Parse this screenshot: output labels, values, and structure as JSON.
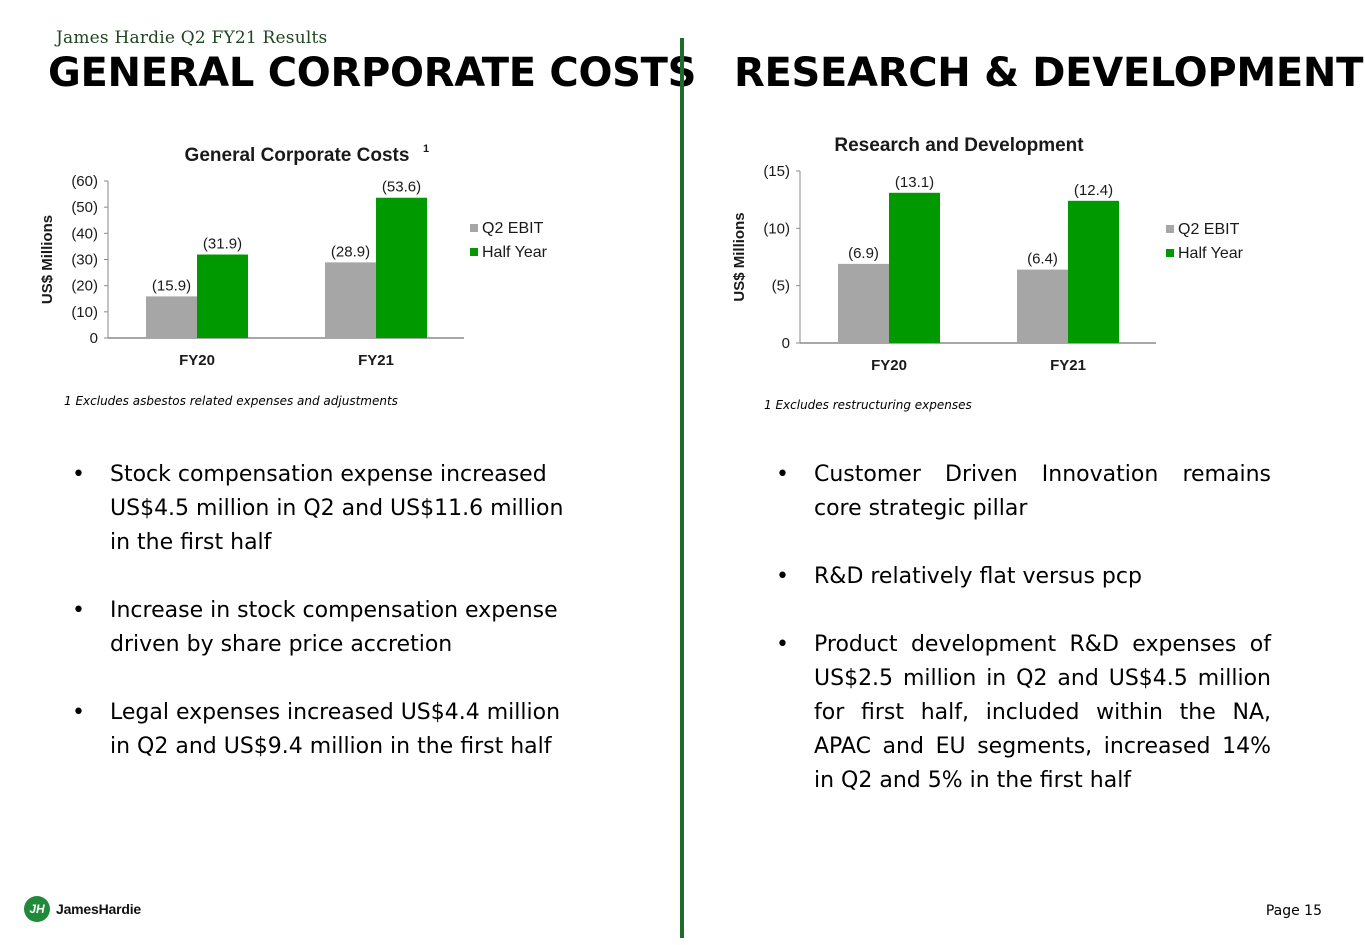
{
  "header": {
    "subtitle": "James Hardie Q2 FY21 Results",
    "left_title": "GENERAL CORPORATE COSTS",
    "right_title": "RESEARCH & DEVELOPMENT"
  },
  "chart_data": [
    {
      "type": "bar",
      "title": "General Corporate Costs",
      "title_superscript": "1",
      "ylabel": "US$ Millions",
      "categories": [
        "FY20",
        "FY21"
      ],
      "series": [
        {
          "name": "Q2 EBIT",
          "color": "#a6a6a6",
          "values": [
            15.9,
            28.9
          ],
          "labels": [
            "(15.9)",
            "(28.9)"
          ]
        },
        {
          "name": "Half Year",
          "color": "#009a00",
          "values": [
            31.9,
            53.6
          ],
          "labels": [
            "(31.9)",
            "(53.6)"
          ]
        }
      ],
      "ylim": [
        0,
        60
      ],
      "yticks": [
        0,
        10,
        20,
        30,
        40,
        50,
        60
      ],
      "ytick_labels": [
        "0",
        "(10)",
        "(20)",
        "(30)",
        "(40)",
        "(50)",
        "(60)"
      ],
      "legend_position": "right"
    },
    {
      "type": "bar",
      "title": "Research and Development",
      "ylabel": "US$ Millions",
      "categories": [
        "FY20",
        "FY21"
      ],
      "series": [
        {
          "name": "Q2 EBIT",
          "color": "#a6a6a6",
          "values": [
            6.9,
            6.4
          ],
          "labels": [
            "(6.9)",
            "(6.4)"
          ]
        },
        {
          "name": "Half Year",
          "color": "#009a00",
          "values": [
            13.1,
            12.4
          ],
          "labels": [
            "(13.1)",
            "(12.4)"
          ]
        }
      ],
      "ylim": [
        0,
        15
      ],
      "yticks": [
        0,
        5,
        10,
        15
      ],
      "ytick_labels": [
        "0",
        "(5)",
        "(10)",
        "(15)"
      ],
      "legend_position": "right"
    }
  ],
  "footnotes": {
    "left": "1  Excludes asbestos related expenses and adjustments",
    "right": "1  Excludes restructuring expenses"
  },
  "bullets_left": [
    "Stock compensation expense increased US$4.5 million in Q2 and US$11.6 million in the first half",
    "Increase in stock compensation expense driven by share price accretion",
    "Legal expenses increased US$4.4 million in Q2 and US$9.4 million in the first half"
  ],
  "bullets_right": [
    "Customer Driven Innovation remains core strategic pillar",
    "R&D relatively flat versus pcp",
    "Product development R&D expenses of US$2.5 million in Q2 and US$4.5 million for first half, included within the NA, APAC and EU segments, increased 14% in Q2 and 5% in the first half"
  ],
  "footer": {
    "logo_mark": "JH",
    "logo_text": "JamesHardie",
    "page_label": "Page 15"
  },
  "colors": {
    "divider": "#1f6b2c",
    "gray_bar": "#a6a6a6",
    "green_bar": "#009a00"
  }
}
